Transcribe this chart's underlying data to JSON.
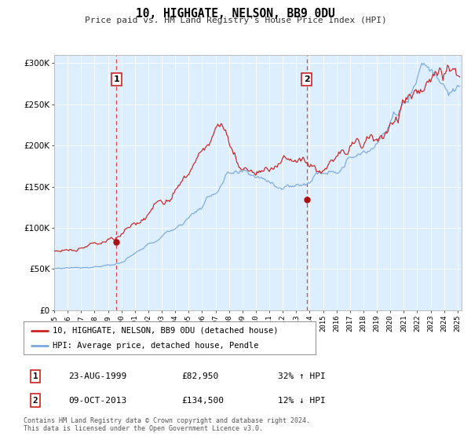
{
  "title": "10, HIGHGATE, NELSON, BB9 0DU",
  "subtitle": "Price paid vs. HM Land Registry's House Price Index (HPI)",
  "legend_line1": "10, HIGHGATE, NELSON, BB9 0DU (detached house)",
  "legend_line2": "HPI: Average price, detached house, Pendle",
  "sale1_date": "23-AUG-1999",
  "sale1_price": "£82,950",
  "sale1_hpi": "32% ↑ HPI",
  "sale1_year": 1999.64,
  "sale1_value": 82950,
  "sale2_date": "09-OCT-2013",
  "sale2_price": "£134,500",
  "sale2_hpi": "12% ↓ HPI",
  "sale2_year": 2013.77,
  "sale2_value": 134500,
  "hpi_color": "#7aaadd",
  "price_color": "#cc2222",
  "marker_color": "#aa1111",
  "vline_color": "#dd4444",
  "background_color": "#ddeeff",
  "footer_text1": "Contains HM Land Registry data © Crown copyright and database right 2024.",
  "footer_text2": "This data is licensed under the Open Government Licence v3.0.",
  "ylim": [
    0,
    310000
  ],
  "xlim_start": 1995.0,
  "xlim_end": 2025.3
}
